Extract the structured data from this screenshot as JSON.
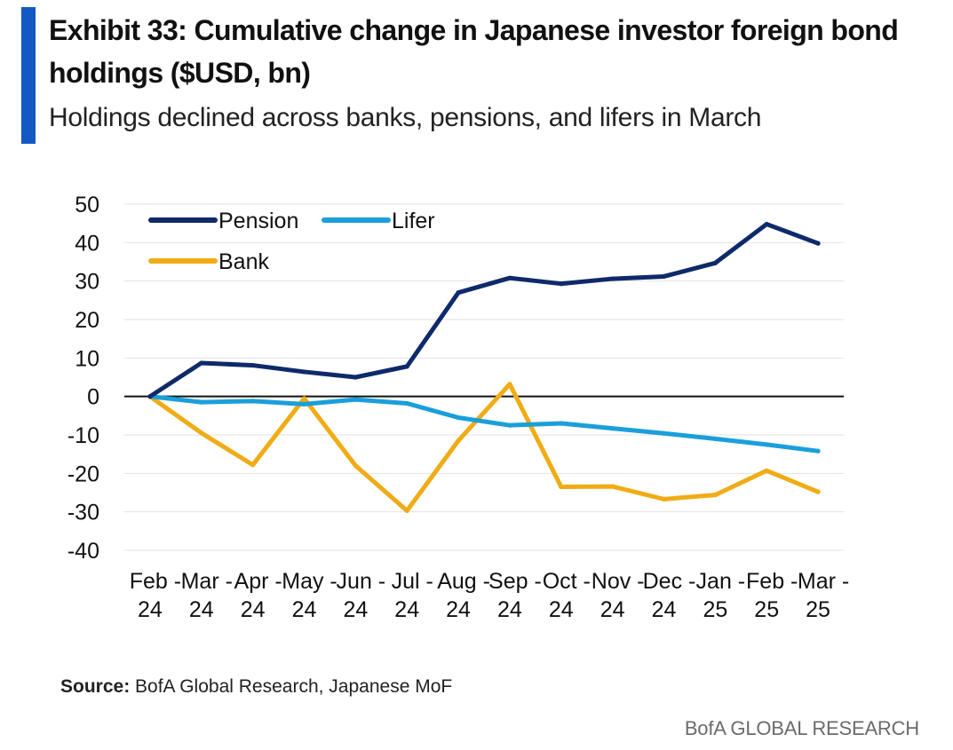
{
  "header": {
    "title": "Exhibit 33: Cumulative change in Japanese investor foreign bond holdings ($USD, bn)",
    "subtitle": "Holdings declined across banks, pensions, and lifers in March"
  },
  "footer": {
    "source_label": "Source:",
    "source_text": " BofA Global Research, Japanese MoF",
    "brand": "BofA GLOBAL RESEARCH"
  },
  "colors": {
    "accent": "#1259c3",
    "pension": "#0f2a6b",
    "lifer": "#1a9fdb",
    "bank": "#f0ac15"
  },
  "chart_data": {
    "type": "line",
    "title": "Exhibit 33: Cumulative change in Japanese investor foreign bond holdings ($USD, bn)",
    "xlabel": "",
    "ylabel": "",
    "ylim": [
      -40,
      50
    ],
    "yticks": [
      50,
      40,
      30,
      20,
      10,
      0,
      -10,
      -20,
      -30,
      -40
    ],
    "categories": [
      "Feb - 24",
      "Mar - 24",
      "Apr - 24",
      "May - 24",
      "Jun - 24",
      "Jul - 24",
      "Aug - 24",
      "Sep - 24",
      "Oct - 24",
      "Nov - 24",
      "Dec - 24",
      "Jan - 25",
      "Feb - 25",
      "Mar - 25"
    ],
    "x_label_lines": [
      [
        "Feb -",
        "24"
      ],
      [
        "Mar -",
        "24"
      ],
      [
        "Apr -",
        "24"
      ],
      [
        "May -",
        "24"
      ],
      [
        "Jun -",
        "24"
      ],
      [
        "Jul -",
        "24"
      ],
      [
        "Aug -",
        "24"
      ],
      [
        "Sep -",
        "24"
      ],
      [
        "Oct -",
        "24"
      ],
      [
        "Nov -",
        "24"
      ],
      [
        "Dec -",
        "24"
      ],
      [
        "Jan -",
        "25"
      ],
      [
        "Feb -",
        "25"
      ],
      [
        "Mar -",
        "25"
      ]
    ],
    "series": [
      {
        "name": "Pension",
        "color": "#0f2a6b",
        "values": [
          0,
          8.7,
          8.1,
          6.4,
          5.0,
          7.8,
          27.0,
          30.8,
          29.3,
          30.6,
          31.2,
          34.7,
          44.8,
          39.8
        ]
      },
      {
        "name": "Lifer",
        "color": "#1a9fdb",
        "values": [
          0,
          -1.5,
          -1.2,
          -2.0,
          -0.8,
          -1.8,
          -5.5,
          -7.5,
          -7.0,
          -8.3,
          -9.6,
          -11.0,
          -12.5,
          -14.2
        ]
      },
      {
        "name": "Bank",
        "color": "#f0ac15",
        "values": [
          0,
          -9.5,
          -17.8,
          -0.5,
          -18.0,
          -29.7,
          -11.5,
          3.2,
          -23.5,
          -23.4,
          -26.7,
          -25.6,
          -19.3,
          -24.8
        ]
      }
    ],
    "legend_position": "top-left",
    "grid": true
  }
}
